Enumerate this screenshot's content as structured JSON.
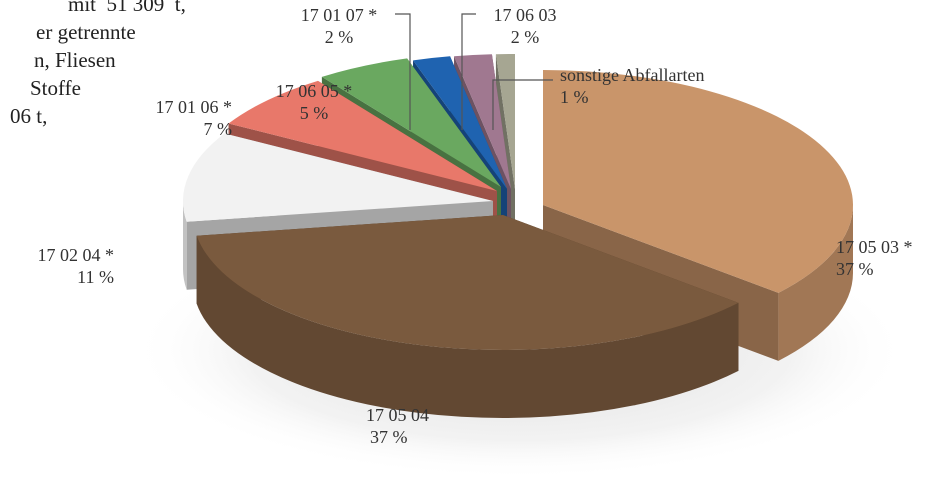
{
  "background_text": [
    "mit  51 309  t,",
    "er getrennte",
    "n, Fliesen",
    "Stoffe",
    "06 t,"
  ],
  "chart_data": {
    "type": "pie",
    "title": "",
    "three_d": true,
    "slices": [
      {
        "code": "17 05 03 *",
        "value": 37,
        "percent_label": "37 %",
        "color": "#c9956a"
      },
      {
        "code": "17 05 04",
        "value": 37,
        "percent_label": "37 %",
        "color": "#7a5a3e"
      },
      {
        "code": "17 02 04 *",
        "value": 11,
        "percent_label": "11 %",
        "color": "#f2f2f2"
      },
      {
        "code": "17 01 06 *",
        "value": 7,
        "percent_label": "7 %",
        "color": "#e8786a"
      },
      {
        "code": "17 06 05 *",
        "value": 5,
        "percent_label": "5 %",
        "color": "#6aa860"
      },
      {
        "code": "17 01 07 *",
        "value": 2,
        "percent_label": "2 %",
        "color": "#1f63b0"
      },
      {
        "code": "17 06 03",
        "value": 2,
        "percent_label": "2 %",
        "color": "#a07890"
      },
      {
        "code": "sonstige Abfallarten",
        "value": 1,
        "percent_label": "1 %",
        "color": "#a6a692"
      }
    ]
  }
}
